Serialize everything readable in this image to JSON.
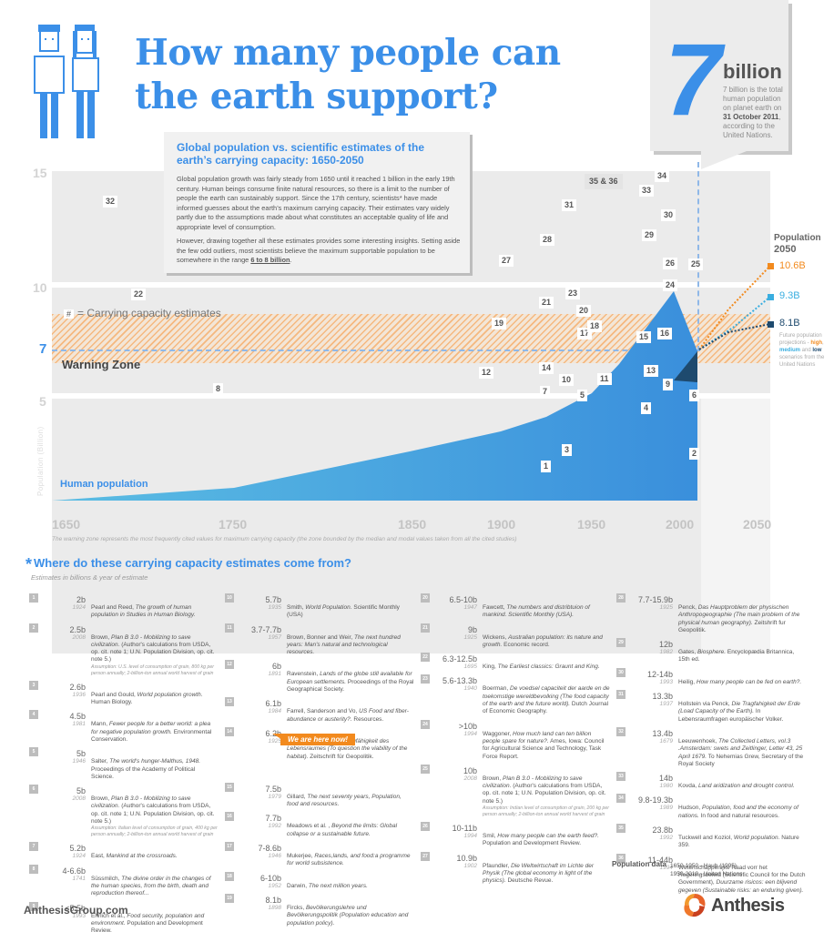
{
  "header": {
    "title_line1": "How many people can",
    "title_line2": "the earth support?",
    "callout": {
      "big_number": "7",
      "unit": "billion",
      "text_before": "7 billion is the total human population on planet earth on",
      "date": "31 October 2011",
      "text_after": ", according to the United Nations."
    }
  },
  "description": {
    "title": "Global population vs. scientific estimates of the earth’s carrying capacity: 1650-2050",
    "p1": "Global population growth was fairly steady from 1650 until it reached 1 billion in the early 19th century. Human beings consume finite natural resources, so there is a limit to the number of people the earth can sustainably support. Since the 17th century, scientists* have made informed guesses about the earth’s maximum carrying capacity. Their estimates vary widely partly due to the  assumptions made about what constitutes an acceptable quality of life and appropriate level of consumption.",
    "p2_before": "However, drawing together all these estimates provides some interesting insights. Setting aside the few odd outliers, most scientists believe the maximum supportable population to be somewhere in the range ",
    "p2_range": "6 to 8 billion",
    "p2_after": "."
  },
  "chart_data": {
    "type": "area",
    "title": "Global population vs. scientific estimates of the earth’s carrying capacity: 1650-2050",
    "xlabel": "",
    "ylabel": "Population (Billion)",
    "x_ticks": [
      "1650",
      "1750",
      "1850",
      "1900",
      "1950",
      "2000",
      "2050"
    ],
    "y_ticks": [
      "5",
      "7",
      "10",
      "15"
    ],
    "series": [
      {
        "name": "Human population",
        "x": [
          1650,
          1750,
          1800,
          1850,
          1900,
          1950,
          1960,
          1970,
          1980,
          1990,
          2000,
          2011
        ],
        "values": [
          0.5,
          0.8,
          1.0,
          1.2,
          1.6,
          2.5,
          3.0,
          3.7,
          4.4,
          5.3,
          6.1,
          7.0
        ]
      }
    ],
    "projections_2050": {
      "title": "Population 2050",
      "high": "10.6B",
      "medium": "9.3B",
      "low": "8.1B",
      "note": "Future population projections - high, medium and low scenarios from the United Nations"
    },
    "warning_zone": {
      "label": "Warning Zone",
      "range": [
        6,
        8
      ]
    },
    "reference_line": {
      "label": "7",
      "value": 7
    },
    "legend": "# = Carrying capacity estimates",
    "estimate_markers": [
      "1",
      "2",
      "3",
      "4",
      "5",
      "6",
      "7",
      "8",
      "9",
      "10",
      "11",
      "12",
      "13",
      "14",
      "15",
      "16",
      "17",
      "18",
      "19",
      "20",
      "21",
      "22",
      "23",
      "24",
      "25",
      "26",
      "27",
      "28",
      "29",
      "30",
      "31",
      "32",
      "33",
      "34",
      "35 & 36"
    ],
    "footnote": "The warning zone represents the most frequently cited values for maximum carrying capacity (the zone bounded by the median and modal values taken from all the cited studies)"
  },
  "labels": {
    "human_population": "Human population",
    "y_axis_title": "Population (Billion)",
    "legend_hash": "#",
    "legend_text": "= Carrying capacity estimates",
    "warning_zone": "Warning Zone",
    "proj_title1": "Population",
    "proj_title2": "2050",
    "proj_high": "10.6B",
    "proj_med": "9.3B",
    "proj_low": "8.1B",
    "proj_note_1": "Future population projections - ",
    "proj_note_high": "high",
    "proj_note_sep": ", ",
    "proj_note_med": "medium",
    "proj_note_and": " and ",
    "proj_note_low": "low",
    "proj_note_end": " scenarios from the United Nations",
    "footnote": "The warning zone represents the most frequently cited values for maximum carrying capacity (the zone bounded by the median and modal values taken from all the cited studies)"
  },
  "sources": {
    "star": "*",
    "title": "Where do these carrying capacity estimates come from?",
    "subtitle": "Estimates in billions & year of estimate",
    "we_are_here": "We are here now!",
    "items": [
      {
        "n": "1",
        "val": "2b",
        "year": "1924",
        "author": "Pearl and Reed, ",
        "title": "The growth of human population in Studies in Human Biology.",
        "rest": "",
        "assume": ""
      },
      {
        "n": "2",
        "val": "2.5b",
        "year": "2008",
        "author": "Brown, ",
        "title": "Plan B 3.0 - Mobilizing to save civilization.",
        "rest": " (Author's calculations from USDA, op. cit. note 1; U.N. Population Division, op. cit. note 5.)",
        "assume": "Assumption: U.S. level of consumption of grain, 800 kg per person annually; 2-billion-ton annual world harvest of grain"
      },
      {
        "n": "3",
        "val": "2.6b",
        "year": "1936",
        "author": "Pearl and Gould, ",
        "title": "World population growth.",
        "rest": " Human Biology.",
        "assume": ""
      },
      {
        "n": "4",
        "val": "4.5b",
        "year": "1981",
        "author": "Mann, ",
        "title": "Fewer people for a better world: a plea for negative population growth.",
        "rest": " Environmental Conservation.",
        "assume": ""
      },
      {
        "n": "5",
        "val": "5b",
        "year": "1946",
        "author": "Salter, ",
        "title": "The world's hunger-Malthus, 1948.",
        "rest": " Proceedings of the Academy of Political Science.",
        "assume": ""
      },
      {
        "n": "6",
        "val": "5b",
        "year": "2008",
        "author": "Brown, ",
        "title": "Plan B 3.0 - Mobilizing to save civilization.",
        "rest": " (Author's calculations from USDA, op. cit. note 1; U.N. Population Division, op. cit. note 5.)",
        "assume": "Assumption: Italian level of consumption of grain, 400 kg per person annually; 2-billion-ton annual world harvest of grain"
      },
      {
        "n": "7",
        "val": "5.2b",
        "year": "1924",
        "author": "East, ",
        "title": "Mankind at the crossroads.",
        "rest": "",
        "assume": ""
      },
      {
        "n": "8",
        "val": "4-6.6b",
        "year": "1741",
        "author": "Süssmilch, ",
        "title": "The divine order in the changes of the human species, from the birth, death and reproduction thereof...",
        "rest": "",
        "assume": ""
      },
      {
        "n": "9",
        "val": "<5.5b",
        "year": "1993",
        "author": "Ehrlich et al., ",
        "title": "Food security, population and environment.",
        "rest": " Population and Development Review.",
        "assume": ""
      },
      {
        "n": "10",
        "val": "5.7b",
        "year": "1935",
        "author": "Smith, ",
        "title": "World Population.",
        "rest": " Scientific Monthly (USA)",
        "assume": ""
      },
      {
        "n": "11",
        "val": "3.7-7.7b",
        "year": "1957",
        "author": "Brown, Bonner and Weir, ",
        "title": "The next hundred years: Man's natural and technological resources.",
        "rest": "",
        "assume": ""
      },
      {
        "n": "12",
        "val": "6b",
        "year": "1891",
        "author": "Ravenstein, ",
        "title": "Lands of the globe still available for European settlements.",
        "rest": " Proceedings of the Royal Geographical Society.",
        "assume": ""
      },
      {
        "n": "13",
        "val": "6.1b",
        "year": "1984",
        "author": "Farrell, Sanderson and Vo, ",
        "title": "US Food and fiber-abundance or austerity?.",
        "rest": " Resources.",
        "assume": ""
      },
      {
        "n": "14",
        "val": "6.2b",
        "year": "1925",
        "author": "Fisher, ",
        "title": "Zur Frage der Tragfähigkeit des Lebensraumes (To question the viability of the habitat).",
        "rest": " Zeitschrift für Geopolitik.",
        "assume": ""
      },
      {
        "n": "15",
        "val": "7.5b",
        "year": "1979",
        "author": "Gillard, ",
        "title": "The next seventy years, Population, food and resources.",
        "rest": "",
        "assume": ""
      },
      {
        "n": "16",
        "val": "7.7b",
        "year": "1992",
        "author": "Meadows et al. , ",
        "title": "Beyond the limits: Global collapse or a sustainable future.",
        "rest": "",
        "assume": ""
      },
      {
        "n": "17",
        "val": "7-8.6b",
        "year": "1946",
        "author": "Mukerjee, ",
        "title": "Races,lands, and food:a programme for world subsistence.",
        "rest": "",
        "assume": ""
      },
      {
        "n": "18",
        "val": "6-10b",
        "year": "1952",
        "author": "Darwin, ",
        "title": "The next million years.",
        "rest": "",
        "assume": ""
      },
      {
        "n": "19",
        "val": "8.1b",
        "year": "1898",
        "author": "Fircks, ",
        "title": "Bevölkerungslehre und Bevölkerungspolitik (Population education and population policy).",
        "rest": "",
        "assume": ""
      },
      {
        "n": "20",
        "val": "6.5-10b",
        "year": "1947",
        "author": "Fawcett, ",
        "title": "The numbers and distribtuion of mankind. Scientific Monthly (USA).",
        "rest": "",
        "assume": ""
      },
      {
        "n": "21",
        "val": "9b",
        "year": "1925",
        "author": "Wickens, ",
        "title": "Australian population: its nature and growth.",
        "rest": " Economic record.",
        "assume": ""
      },
      {
        "n": "22",
        "val": "6.3-12.5b",
        "year": "1695",
        "author": "King, ",
        "title": "The Earliest classics: Graunt and King.",
        "rest": "",
        "assume": ""
      },
      {
        "n": "23",
        "val": "5.6-13.3b",
        "year": "1940",
        "author": "Boerman, ",
        "title": "De voedsel capaciteit der aarde en de toekomstige wereldbevolking (The food capacity of the earth and the future world).",
        "rest": " Dutch Journal of Economic Geography.",
        "assume": ""
      },
      {
        "n": "24",
        "val": ">10b",
        "year": "1994",
        "author": "Waggoner, ",
        "title": "How much land can ten billion people spare for nature?.",
        "rest": " Ames, Iowa: Council for Agricultural Science and Technology, Task Force Report.",
        "assume": ""
      },
      {
        "n": "25",
        "val": "10b",
        "year": "2008",
        "author": "Brown, ",
        "title": "Plan B 3.0 - Mobilizing to save civilization.",
        "rest": " (Author's calculations from USDA, op. cit. note 1; U.N. Population Division, op. cit. note 5.)",
        "assume": "Assumption: Indian level of consumption of grain, 200 kg per person annually; 2-billion-ton annual world harvest of grain"
      },
      {
        "n": "26",
        "val": "10-11b",
        "year": "1994",
        "author": "Smil,  ",
        "title": "How many people can the earth feed?.",
        "rest": " Population and Development Review.",
        "assume": ""
      },
      {
        "n": "27",
        "val": "10.9b",
        "year": "1902",
        "author": "Pfaundler, ",
        "title": "Die Weltwirtschaft im Lichte der Physik (The global economy in light of the physics).",
        "rest": " Deutsche Revue.",
        "assume": ""
      },
      {
        "n": "28",
        "val": "7.7-15.9b",
        "year": "1925",
        "author": "Penck, ",
        "title": "Das Hauptproblem der physischen Anthropogeographie (The main problem of the physical human geography).",
        "rest": " Zeitshrift fur Geopolitik.",
        "assume": ""
      },
      {
        "n": "29",
        "val": "12b",
        "year": "1982",
        "author": "Gates, ",
        "title": "Biosphere.",
        "rest": " Encyclopædia Britannica, 15th ed.",
        "assume": ""
      },
      {
        "n": "30",
        "val": "12-14b",
        "year": "1993",
        "author": "Heilig, ",
        "title": "How many people can be fed on earth?.",
        "rest": "",
        "assume": ""
      },
      {
        "n": "31",
        "val": "13.3b",
        "year": "1937",
        "author": "Hollstein via Penck, ",
        "title": "Die Tragfahigkeit der Erde (Load Capacity of the Earth).",
        "rest": " In Lebensraumfragen europäischer Volker.",
        "assume": ""
      },
      {
        "n": "32",
        "val": "13.4b",
        "year": "1679",
        "author": "Leeuwenhoek, ",
        "title": "The Collected Letters, vol.3 .Amsterdam: swets and Zeitlinger, Letter 43, 25 April 1679.",
        "rest": " To Nehemias Grew, Secretary of the Royal Society",
        "assume": ""
      },
      {
        "n": "33",
        "val": "14b",
        "year": "1980",
        "author": "Kovda, ",
        "title": "Land aridization and drought control.",
        "rest": "",
        "assume": ""
      },
      {
        "n": "34",
        "val": "9.8-19.3b",
        "year": "1989",
        "author": "Hudson, ",
        "title": "Population, food and the economy of nations.",
        "rest": " In food and natural resources.",
        "assume": ""
      },
      {
        "n": "35",
        "val": "23.8b",
        "year": "1992",
        "author": "Tuckwell and Koziol, ",
        "title": "World population.",
        "rest": " Nature 359.",
        "assume": ""
      },
      {
        "n": "36",
        "val": "11-44b",
        "year": "1994",
        "author": "Wetenschapperlijke Raad vorr het Regeringsbeleid (Scientific Council for the Dutch Government), ",
        "title": "Duurzame risicos: een blijvend gegeven (Sustainable risks: an enduring given).",
        "rest": "",
        "assume": ""
      }
    ],
    "population_data_label": "Population data",
    "population_data_1": "1650-1950 - Haub (1995)",
    "population_data_2": "1950-2010 - United Nations"
  },
  "footer": {
    "site": "AnthesisGroup.com",
    "logo": "Anthesis"
  },
  "colors": {
    "accent_blue": "#3b8fe8",
    "orange_high": "#f28a1e",
    "light_blue_medium": "#3aaee0",
    "dark_blue_low": "#1e4a6e",
    "band_gray": "#ebebeb"
  }
}
